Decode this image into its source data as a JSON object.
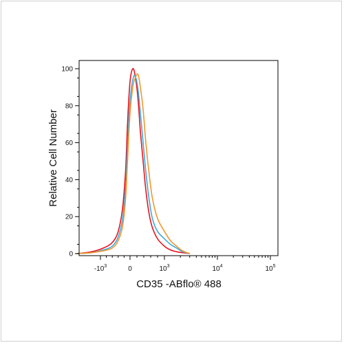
{
  "chart_data": {
    "type": "line",
    "xlabel": "CD35 -ABflo® 488",
    "ylabel": "Relative Cell Number",
    "x_scale": "biexponential",
    "ylim": [
      0,
      100
    ],
    "y_ticks": [
      0,
      20,
      40,
      60,
      80,
      100
    ],
    "y_tick_labels": [
      "0",
      "20",
      "40",
      "60",
      "80",
      "100"
    ],
    "x_ticks": [
      {
        "value": -1000,
        "base": "-10",
        "exp": "3"
      },
      {
        "value": 0,
        "base": "0",
        "exp": ""
      },
      {
        "value": 1000,
        "base": "10",
        "exp": "3"
      },
      {
        "value": 10000,
        "base": "10",
        "exp": "4"
      },
      {
        "value": 100000,
        "base": "10",
        "exp": "5"
      }
    ],
    "grid": false,
    "series": [
      {
        "color": "#e8111b",
        "x": [
          -1800,
          -1300,
          -900,
          -600,
          -400,
          -250,
          -150,
          -80,
          0,
          80,
          150,
          230,
          300,
          380,
          450,
          550,
          650,
          800,
          1000,
          1300,
          1700,
          2200,
          3000
        ],
        "y": [
          0,
          1,
          3,
          6,
          12,
          25,
          45,
          72,
          93,
          100,
          96,
          84,
          66,
          50,
          36,
          22,
          14,
          8,
          4,
          2,
          1,
          0.5,
          0
        ]
      },
      {
        "color": "#3aa9dd",
        "x": [
          -1800,
          -1300,
          -900,
          -600,
          -400,
          -250,
          -150,
          -80,
          0,
          80,
          150,
          230,
          300,
          380,
          450,
          550,
          650,
          800,
          1000,
          1300,
          1700,
          2200,
          3000
        ],
        "y": [
          0,
          0.5,
          2,
          4,
          9,
          19,
          36,
          60,
          82,
          94,
          96,
          89,
          76,
          60,
          46,
          30,
          19,
          12,
          8,
          5,
          3,
          1,
          0
        ]
      },
      {
        "color": "#f2962a",
        "x": [
          -1800,
          -1300,
          -900,
          -600,
          -400,
          -250,
          -150,
          -80,
          0,
          80,
          150,
          230,
          300,
          380,
          450,
          550,
          650,
          800,
          1000,
          1300,
          1700,
          2200,
          3000
        ],
        "y": [
          0,
          0.5,
          1.5,
          3,
          7,
          15,
          30,
          52,
          76,
          90,
          95,
          97,
          90,
          78,
          62,
          44,
          30,
          19,
          12,
          7,
          4,
          1.5,
          0
        ]
      }
    ]
  }
}
